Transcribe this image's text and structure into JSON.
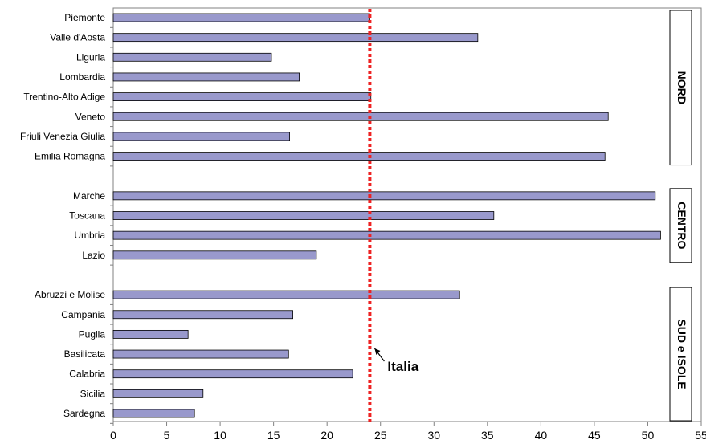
{
  "chart_data": {
    "type": "bar",
    "orientation": "horizontal",
    "title": "",
    "xlabel": "",
    "ylabel": "",
    "xlim": [
      0,
      55
    ],
    "x_ticks": [
      0,
      5,
      10,
      15,
      20,
      25,
      30,
      35,
      40,
      45,
      50,
      55
    ],
    "grid": false,
    "legend": "none",
    "bar_color": "#9999cc",
    "reference_line": {
      "value": 24,
      "label": "Italia",
      "color": "#ee2222"
    },
    "groups": [
      {
        "name": "NORD",
        "categories": [
          "Piemonte",
          "Valle d'Aosta",
          "Liguria",
          "Lombardia",
          "Trentino-Alto Adige",
          "Veneto",
          "Friuli Venezia Giulia",
          "Emilia Romagna"
        ],
        "values": [
          24,
          34.1,
          14.8,
          17.4,
          24.1,
          46.3,
          16.5,
          46
        ]
      },
      {
        "name": "CENTRO",
        "categories": [
          "Marche",
          "Toscana",
          "Umbria",
          "Lazio"
        ],
        "values": [
          50.7,
          35.6,
          51.2,
          19
        ]
      },
      {
        "name": "SUD e ISOLE",
        "categories": [
          "Abruzzi e Molise",
          "Campania",
          "Puglia",
          "Basilicata",
          "Calabria",
          "Sicilia",
          "Sardegna"
        ],
        "values": [
          32.4,
          16.8,
          7,
          16.4,
          22.4,
          8.4,
          7.6
        ]
      }
    ]
  }
}
